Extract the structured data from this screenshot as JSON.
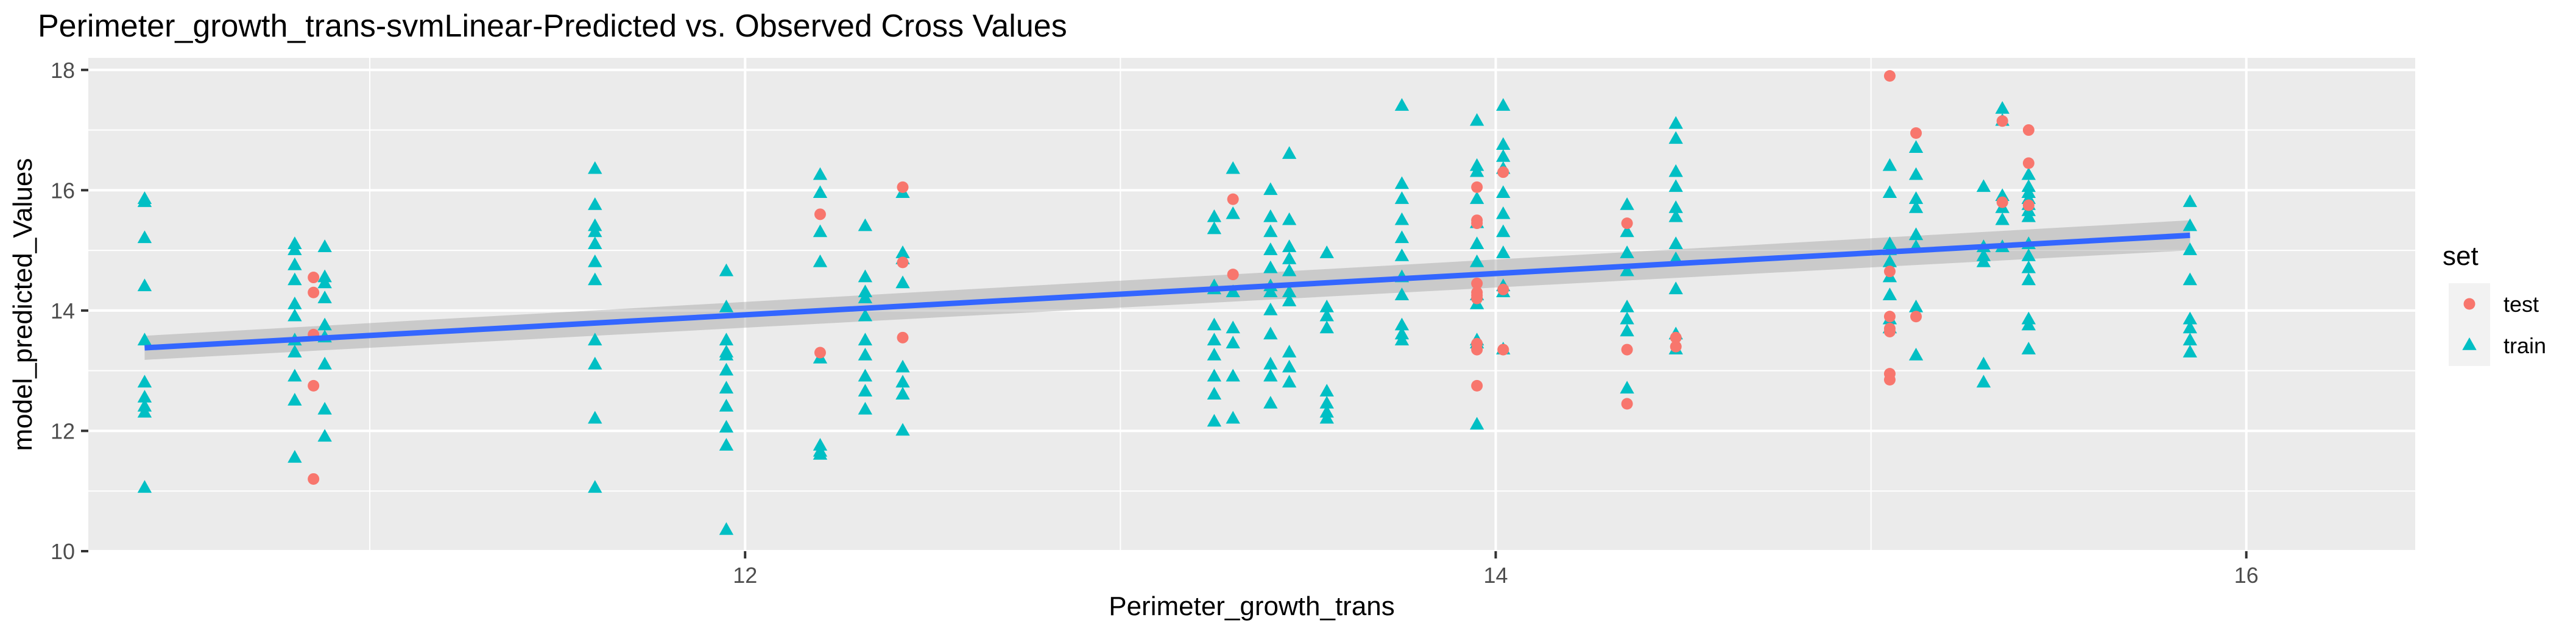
{
  "chart_data": {
    "type": "scatter",
    "title": "Perimeter_growth_trans-svmLinear-Predicted vs. Observed Cross Values",
    "xlabel": "Perimeter_growth_trans",
    "ylabel": "model_predicted_Values",
    "xlim": [
      10.25,
      16.45
    ],
    "ylim": [
      10,
      18.2
    ],
    "x_ticks": [
      12,
      14,
      16
    ],
    "x_tick_labels": [
      "12",
      "14",
      "16"
    ],
    "y_ticks": [
      10,
      12,
      14,
      16,
      18
    ],
    "y_tick_labels": [
      "10",
      "12",
      "14",
      "16",
      "18"
    ],
    "grid": true,
    "legend": {
      "title": "set",
      "position": "right",
      "entries": [
        {
          "label": "test",
          "color": "#F8766D",
          "shape": "circle"
        },
        {
          "label": "train",
          "color": "#00BFC4",
          "shape": "triangle"
        }
      ]
    },
    "colors": {
      "test": "#F8766D",
      "train": "#00BFC4",
      "fit_line": "#3366FF",
      "band": "#999999",
      "panel": "#EBEBEB",
      "grid": "#FFFFFF"
    },
    "fit": {
      "x": [
        10.4,
        15.85
      ],
      "y": [
        13.38,
        15.25
      ],
      "band_halfwidth": [
        0.2,
        0.25
      ]
    },
    "series": [
      {
        "name": "test",
        "x": [
          10.85,
          10.85,
          10.85,
          10.85,
          10.85,
          12.2,
          12.2,
          12.42,
          12.42,
          12.42,
          13.3,
          13.3,
          13.95,
          13.95,
          13.95,
          13.95,
          13.95,
          13.95,
          13.95,
          13.95,
          13.95,
          13.95,
          14.02,
          14.02,
          14.02,
          14.35,
          14.35,
          14.35,
          14.48,
          14.48,
          15.05,
          15.05,
          15.05,
          15.05,
          15.05,
          15.05,
          15.05,
          15.12,
          15.12,
          15.35,
          15.35,
          15.42,
          15.42,
          15.42
        ],
        "y": [
          14.55,
          14.3,
          13.6,
          12.75,
          11.2,
          15.6,
          13.3,
          16.05,
          14.8,
          13.55,
          15.85,
          14.6,
          16.05,
          15.5,
          15.45,
          14.45,
          14.3,
          14.25,
          14.2,
          13.45,
          13.35,
          12.75,
          16.3,
          14.35,
          13.35,
          15.45,
          13.35,
          12.45,
          13.55,
          13.4,
          17.9,
          14.65,
          13.9,
          13.7,
          13.65,
          12.95,
          12.85,
          16.95,
          13.9,
          17.15,
          15.8,
          17.0,
          16.45,
          15.75
        ]
      },
      {
        "name": "train",
        "x": [
          10.4,
          10.4,
          10.4,
          10.4,
          10.4,
          10.4,
          10.4,
          10.4,
          10.4,
          10.4,
          10.8,
          10.8,
          10.8,
          10.8,
          10.8,
          10.8,
          10.8,
          10.8,
          10.8,
          10.8,
          10.8,
          10.88,
          10.88,
          10.88,
          10.88,
          10.88,
          10.88,
          10.88,
          10.88,
          10.88,
          11.6,
          11.6,
          11.6,
          11.6,
          11.6,
          11.6,
          11.6,
          11.6,
          11.6,
          11.6,
          11.6,
          11.95,
          11.95,
          11.95,
          11.95,
          11.95,
          11.95,
          11.95,
          11.95,
          11.95,
          11.95,
          11.95,
          12.2,
          12.2,
          12.2,
          12.2,
          12.2,
          12.2,
          12.2,
          12.2,
          12.32,
          12.32,
          12.32,
          12.32,
          12.32,
          12.32,
          12.32,
          12.32,
          12.32,
          12.32,
          12.42,
          12.42,
          12.42,
          12.42,
          12.42,
          12.42,
          12.42,
          12.42,
          13.25,
          13.25,
          13.25,
          13.25,
          13.25,
          13.25,
          13.25,
          13.25,
          13.25,
          13.25,
          13.3,
          13.3,
          13.3,
          13.3,
          13.3,
          13.3,
          13.3,
          13.4,
          13.4,
          13.4,
          13.4,
          13.4,
          13.4,
          13.4,
          13.4,
          13.4,
          13.4,
          13.4,
          13.4,
          13.45,
          13.45,
          13.45,
          13.45,
          13.45,
          13.45,
          13.45,
          13.45,
          13.45,
          13.45,
          13.55,
          13.55,
          13.55,
          13.55,
          13.55,
          13.55,
          13.55,
          13.55,
          13.75,
          13.75,
          13.75,
          13.75,
          13.75,
          13.75,
          13.75,
          13.75,
          13.75,
          13.75,
          13.75,
          13.95,
          13.95,
          13.95,
          13.95,
          13.95,
          13.95,
          13.95,
          13.95,
          13.95,
          13.95,
          13.95,
          13.95,
          14.02,
          14.02,
          14.02,
          14.02,
          14.02,
          14.02,
          14.02,
          14.02,
          14.02,
          14.02,
          14.02,
          14.35,
          14.35,
          14.35,
          14.35,
          14.35,
          14.35,
          14.35,
          14.35,
          14.48,
          14.48,
          14.48,
          14.48,
          14.48,
          14.48,
          14.48,
          14.48,
          14.48,
          14.48,
          14.48,
          15.05,
          15.05,
          15.05,
          15.05,
          15.05,
          15.05,
          15.05,
          15.05,
          15.05,
          15.12,
          15.12,
          15.12,
          15.12,
          15.12,
          15.12,
          15.12,
          15.12,
          15.3,
          15.3,
          15.3,
          15.3,
          15.3,
          15.3,
          15.35,
          15.35,
          15.35,
          15.35,
          15.35,
          15.35,
          15.42,
          15.42,
          15.42,
          15.42,
          15.42,
          15.42,
          15.42,
          15.42,
          15.42,
          15.42,
          15.42,
          15.42,
          15.42,
          15.42,
          15.85,
          15.85,
          15.85,
          15.85,
          15.85,
          15.85,
          15.85,
          15.85
        ],
        "y": [
          15.85,
          15.8,
          15.2,
          14.4,
          13.5,
          12.8,
          12.55,
          12.4,
          12.3,
          11.05,
          15.1,
          15.0,
          14.75,
          14.5,
          14.1,
          13.9,
          13.5,
          13.3,
          12.9,
          12.5,
          11.55,
          15.05,
          14.55,
          14.45,
          14.2,
          13.75,
          13.55,
          13.1,
          12.35,
          11.9,
          16.35,
          15.75,
          15.4,
          15.3,
          15.1,
          14.8,
          14.5,
          13.5,
          13.1,
          12.2,
          11.05,
          14.65,
          14.05,
          13.5,
          13.3,
          13.25,
          13.0,
          12.7,
          12.4,
          12.05,
          11.75,
          10.35,
          16.25,
          15.95,
          15.3,
          14.8,
          13.2,
          11.75,
          11.65,
          11.6,
          15.4,
          14.55,
          14.3,
          14.2,
          13.9,
          13.5,
          13.25,
          12.9,
          12.65,
          12.35,
          15.95,
          14.95,
          14.85,
          14.45,
          13.05,
          12.8,
          12.6,
          12.0,
          15.55,
          15.35,
          14.4,
          14.35,
          13.75,
          13.5,
          13.25,
          12.9,
          12.6,
          12.15,
          16.35,
          15.6,
          14.3,
          13.7,
          13.45,
          12.9,
          12.2,
          16.0,
          15.55,
          15.3,
          15.0,
          14.7,
          14.4,
          14.3,
          14.0,
          13.6,
          13.1,
          12.9,
          12.45,
          16.6,
          15.5,
          15.05,
          14.85,
          14.65,
          14.3,
          14.15,
          13.3,
          13.05,
          12.8,
          14.95,
          14.05,
          13.9,
          13.7,
          12.65,
          12.45,
          12.3,
          12.2,
          17.4,
          16.1,
          15.85,
          15.5,
          15.2,
          14.9,
          14.55,
          14.25,
          13.75,
          13.6,
          13.5,
          17.15,
          16.4,
          16.3,
          15.85,
          15.45,
          15.1,
          14.8,
          14.25,
          14.1,
          13.5,
          13.45,
          12.1,
          17.4,
          16.75,
          16.55,
          16.35,
          15.95,
          15.6,
          15.3,
          14.95,
          14.4,
          14.3,
          13.35,
          15.75,
          15.3,
          14.95,
          14.65,
          14.05,
          13.85,
          13.65,
          12.7,
          17.1,
          16.85,
          16.3,
          16.05,
          15.7,
          15.55,
          15.1,
          14.85,
          14.35,
          13.6,
          13.35,
          16.4,
          15.95,
          15.1,
          15.0,
          14.8,
          14.55,
          14.25,
          13.85,
          13.7,
          16.7,
          16.25,
          15.85,
          15.7,
          15.25,
          15.05,
          14.05,
          13.25,
          16.05,
          15.05,
          14.9,
          14.8,
          13.1,
          12.8,
          17.35,
          17.15,
          15.9,
          15.7,
          15.5,
          15.05,
          16.25,
          16.05,
          15.95,
          15.85,
          15.75,
          15.65,
          15.55,
          15.1,
          14.9,
          14.7,
          14.5,
          13.85,
          13.75,
          13.35,
          15.8,
          15.4,
          15.0,
          14.5,
          13.85,
          13.7,
          13.5,
          13.3
        ]
      }
    ]
  }
}
